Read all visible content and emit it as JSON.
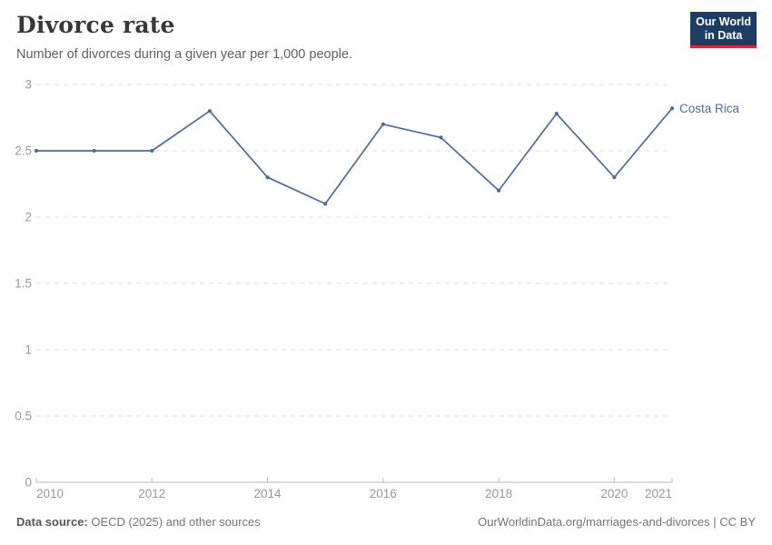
{
  "header": {
    "title": "Divorce rate",
    "subtitle": "Number of divorces during a given year per 1,000 people."
  },
  "logo": {
    "line1": "Our World",
    "line2": "in Data"
  },
  "chart_data": {
    "type": "line",
    "title": "Divorce rate",
    "subtitle": "Number of divorces during a given year per 1,000 people.",
    "x": [
      2010,
      2011,
      2012,
      2013,
      2014,
      2015,
      2016,
      2017,
      2018,
      2019,
      2020,
      2021
    ],
    "series": [
      {
        "name": "Costa Rica",
        "values": [
          2.5,
          2.5,
          2.5,
          2.8,
          2.3,
          2.1,
          2.7,
          2.6,
          2.2,
          2.78,
          2.3,
          2.82
        ],
        "color": "#4C6A9C"
      }
    ],
    "ylim": [
      0,
      3
    ],
    "yticks": [
      0,
      0.5,
      1,
      1.5,
      2,
      2.5,
      3
    ],
    "ytick_labels": [
      "0",
      "0.5",
      "1",
      "1.5",
      "2",
      "2.5",
      "3"
    ],
    "xtick_labels": [
      "2010",
      "2012",
      "2014",
      "2016",
      "2018",
      "2020",
      "2021"
    ],
    "grid": "horizontal-dashed",
    "legend_position": "end-of-line-label",
    "end_label": "Costa Rica"
  },
  "footer": {
    "source_label": "Data source:",
    "source_text": " OECD (2025) and other sources",
    "right_text": "OurWorldinData.org/marriages-and-divorces | CC BY"
  },
  "colors": {
    "line": "#4C6A9C",
    "grid": "#dedede",
    "axis": "#b8b8b8",
    "axis_text": "#989898",
    "logo_bg": "#1d3d63",
    "logo_accent": "#e0263b",
    "title_text": "#383838",
    "subtitle_text": "#5f5f5f"
  }
}
